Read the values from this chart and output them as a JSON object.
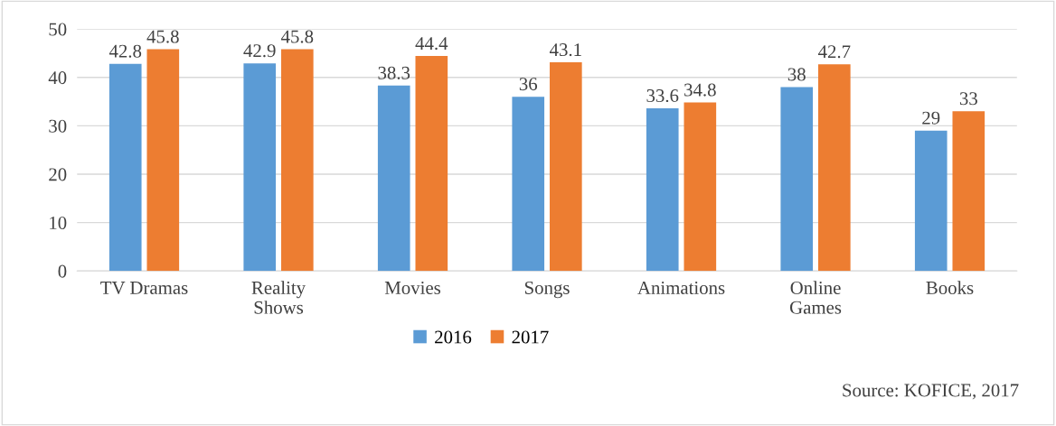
{
  "chart_data": {
    "type": "bar",
    "categories": [
      "TV Dramas",
      "Reality\nShows",
      "Movies",
      "Songs",
      "Animations",
      "Online\nGames",
      "Books"
    ],
    "series": [
      {
        "name": "2016",
        "color": "#5b9bd5",
        "values": [
          42.8,
          42.9,
          38.3,
          36,
          33.6,
          38,
          29
        ]
      },
      {
        "name": "2017",
        "color": "#ed7d31",
        "values": [
          45.8,
          45.8,
          44.4,
          43.1,
          34.8,
          42.7,
          33
        ]
      }
    ],
    "ylim": [
      0,
      50
    ],
    "yticks": [
      0,
      10,
      20,
      30,
      40,
      50
    ],
    "grid": "y",
    "legend": "bottom",
    "data_labels": true,
    "annotations": [
      "Source: KOFICE, 2017"
    ]
  }
}
